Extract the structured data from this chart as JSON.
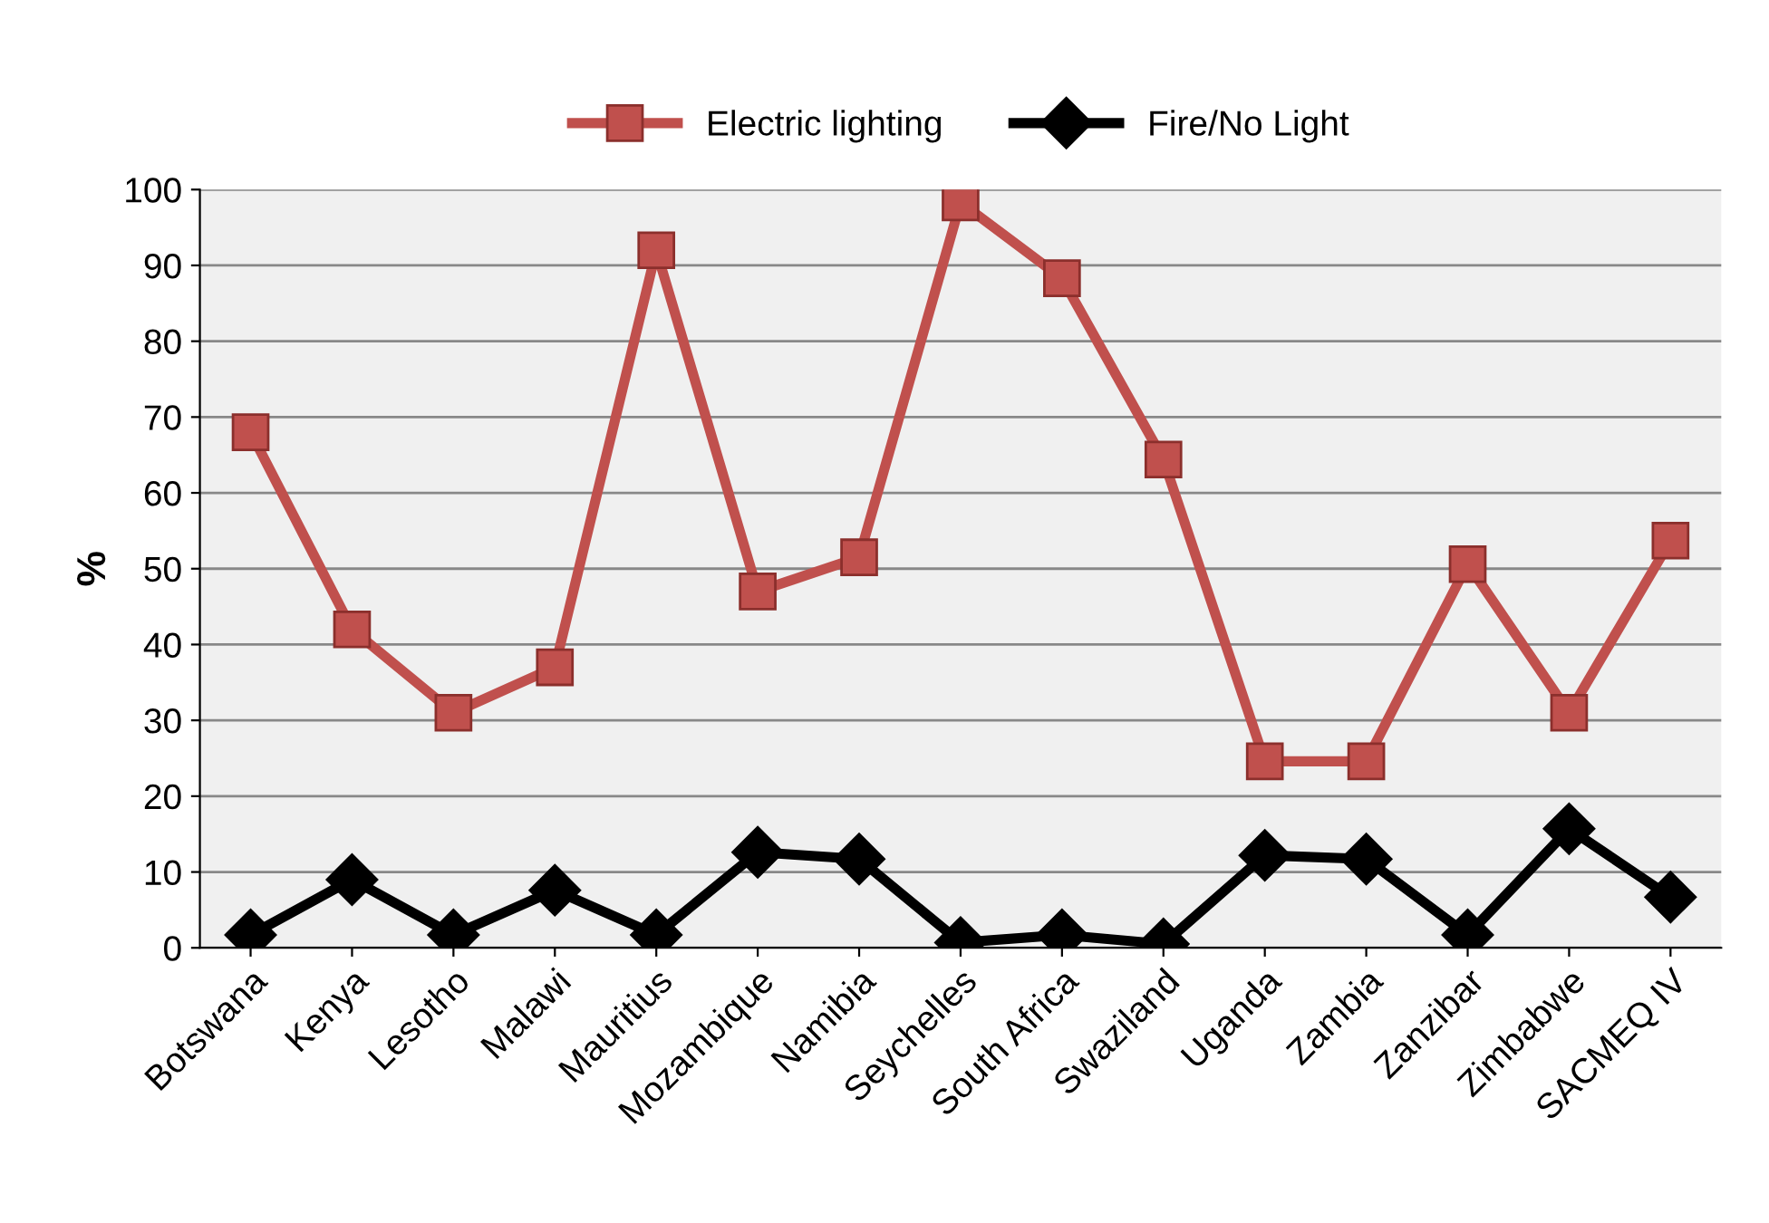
{
  "chart_data": {
    "type": "line",
    "ylabel": "%",
    "categories": [
      "Botswana",
      "Kenya",
      "Lesotho",
      "Malawi",
      "Mauritius",
      "Mozambique",
      "Namibia",
      "Seychelles",
      "South Africa",
      "Swaziland",
      "Uganda",
      "Zambia",
      "Zanzibar",
      "Zimbabwe",
      "SACMEQ IV"
    ],
    "series": [
      {
        "name": "Electric lighting",
        "color": "#c0504d",
        "marker": "square",
        "values": [
          68,
          42,
          31,
          37,
          92,
          47,
          51.5,
          98.3,
          88.3,
          64.4,
          24.6,
          24.6,
          50.6,
          31,
          53.7
        ]
      },
      {
        "name": "Fire/No Light",
        "color": "#000000",
        "marker": "diamond",
        "values": [
          1.7,
          9,
          1.7,
          7.6,
          1.7,
          12.6,
          11.7,
          0.7,
          1.7,
          0.5,
          12.2,
          11.7,
          1.7,
          15.7,
          6.7
        ]
      }
    ],
    "ylim": [
      0,
      100
    ],
    "yticks": [
      0,
      10,
      20,
      30,
      40,
      50,
      60,
      70,
      80,
      90,
      100
    ],
    "grid": "y",
    "legend": "top",
    "line_style": "solid"
  }
}
